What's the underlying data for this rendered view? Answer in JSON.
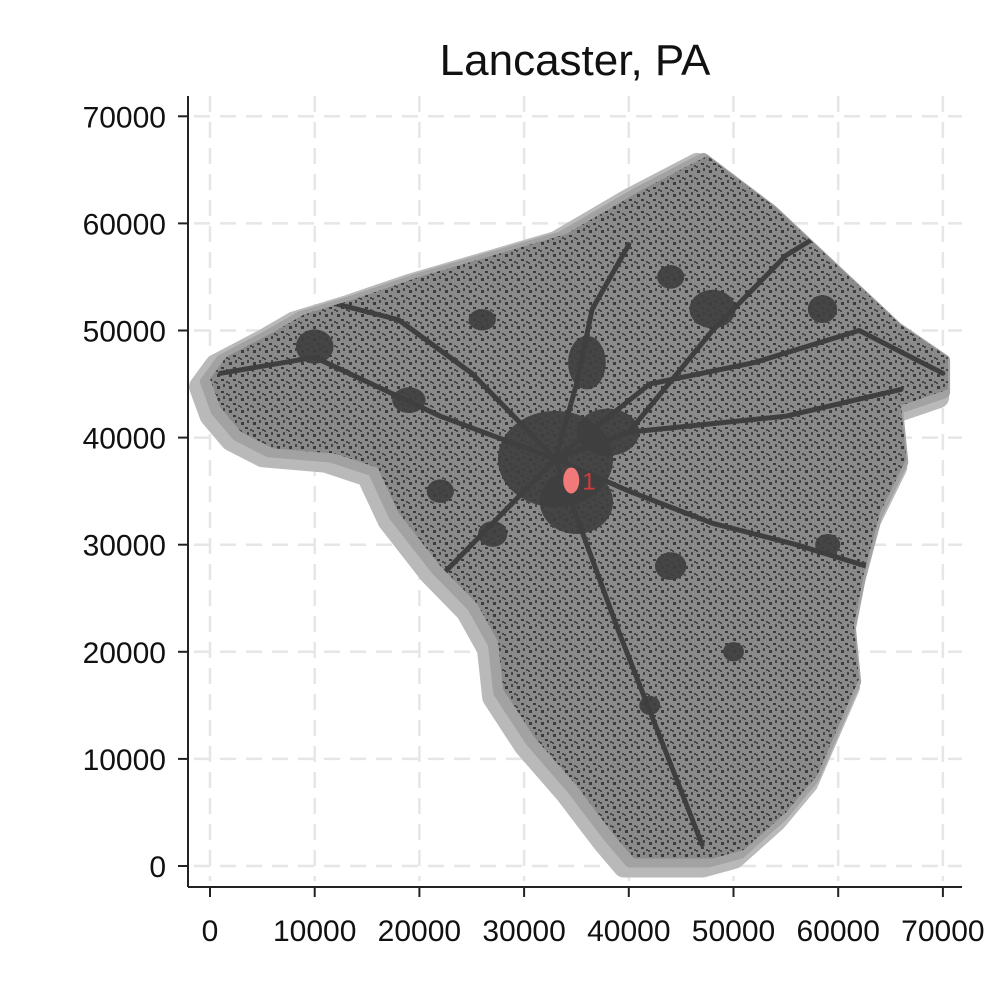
{
  "chart_data": {
    "type": "map",
    "title": "Lancaster, PA",
    "xlim": [
      0,
      72000
    ],
    "ylim": [
      0,
      70000
    ],
    "x_ticks": [
      "0",
      "10000",
      "20000",
      "30000",
      "40000",
      "50000",
      "60000",
      "70000"
    ],
    "y_ticks": [
      "0",
      "10000",
      "20000",
      "30000",
      "40000",
      "50000",
      "60000",
      "70000"
    ],
    "grid": true,
    "colors": {
      "outer_band": "#b9b9b9",
      "mid_band": "#a2a2a2",
      "county": "#8a8a8a",
      "urban": "#3f3f3f",
      "marker": "#f27979",
      "marker_label": "#d23c3c"
    },
    "markers": [
      {
        "label": "1",
        "x": 34500,
        "y": 36000
      }
    ],
    "boundary": [
      [
        0,
        45500
      ],
      [
        1500,
        47500
      ],
      [
        6000,
        49800
      ],
      [
        9000,
        51500
      ],
      [
        14000,
        53000
      ],
      [
        20000,
        55000
      ],
      [
        27000,
        57000
      ],
      [
        34000,
        59000
      ],
      [
        41000,
        63000
      ],
      [
        47500,
        66300
      ],
      [
        54000,
        61500
      ],
      [
        60000,
        56000
      ],
      [
        66000,
        50500
      ],
      [
        70500,
        47500
      ],
      [
        70500,
        44500
      ],
      [
        66000,
        43000
      ],
      [
        66500,
        38000
      ],
      [
        64000,
        33000
      ],
      [
        62500,
        27500
      ],
      [
        61500,
        22500
      ],
      [
        62000,
        17500
      ],
      [
        60000,
        13000
      ],
      [
        58000,
        8500
      ],
      [
        55000,
        5000
      ],
      [
        51000,
        1500
      ],
      [
        48000,
        700
      ],
      [
        40500,
        700
      ],
      [
        38500,
        3000
      ],
      [
        35000,
        7500
      ],
      [
        31000,
        12000
      ],
      [
        28000,
        16500
      ],
      [
        27500,
        21000
      ],
      [
        25500,
        24500
      ],
      [
        22000,
        28000
      ],
      [
        18000,
        33000
      ],
      [
        16000,
        37200
      ],
      [
        12000,
        38500
      ],
      [
        6000,
        39000
      ],
      [
        3000,
        40500
      ],
      [
        1000,
        42800
      ]
    ],
    "urban_areas": [
      {
        "x": 33000,
        "y": 38000,
        "rx": 5500,
        "ry": 4500
      },
      {
        "x": 35000,
        "y": 34000,
        "rx": 3500,
        "ry": 3000
      },
      {
        "x": 38000,
        "y": 40500,
        "rx": 3000,
        "ry": 2200
      },
      {
        "x": 36000,
        "y": 47000,
        "rx": 1800,
        "ry": 2500
      },
      {
        "x": 10000,
        "y": 48500,
        "rx": 1800,
        "ry": 1600
      },
      {
        "x": 19000,
        "y": 43500,
        "rx": 1600,
        "ry": 1200
      },
      {
        "x": 48000,
        "y": 52000,
        "rx": 2200,
        "ry": 1800
      },
      {
        "x": 58500,
        "y": 52000,
        "rx": 1400,
        "ry": 1300
      },
      {
        "x": 44000,
        "y": 28000,
        "rx": 1500,
        "ry": 1300
      },
      {
        "x": 59000,
        "y": 30000,
        "rx": 1200,
        "ry": 1000
      },
      {
        "x": 50000,
        "y": 20000,
        "rx": 1000,
        "ry": 900
      },
      {
        "x": 22000,
        "y": 35000,
        "rx": 1300,
        "ry": 1100
      },
      {
        "x": 27000,
        "y": 31000,
        "rx": 1400,
        "ry": 1200
      },
      {
        "x": 44000,
        "y": 55000,
        "rx": 1300,
        "ry": 1100
      },
      {
        "x": 26000,
        "y": 51000,
        "rx": 1300,
        "ry": 1000
      },
      {
        "x": 42000,
        "y": 15000,
        "rx": 1000,
        "ry": 900
      }
    ],
    "roads": [
      [
        [
          1000,
          46000
        ],
        [
          10000,
          47500
        ],
        [
          22000,
          42000
        ],
        [
          33000,
          38000
        ],
        [
          40000,
          40500
        ],
        [
          55000,
          42000
        ],
        [
          66000,
          44500
        ]
      ],
      [
        [
          33000,
          38000
        ],
        [
          40000,
          35000
        ],
        [
          48000,
          32000
        ],
        [
          56000,
          30000
        ],
        [
          66000,
          27000
        ]
      ],
      [
        [
          33000,
          38000
        ],
        [
          35000,
          45000
        ],
        [
          36500,
          52000
        ],
        [
          40000,
          58000
        ]
      ],
      [
        [
          33000,
          38000
        ],
        [
          25000,
          46000
        ],
        [
          18000,
          51000
        ],
        [
          10000,
          53000
        ]
      ],
      [
        [
          33000,
          38000
        ],
        [
          36000,
          30000
        ],
        [
          39000,
          22000
        ],
        [
          43000,
          12000
        ],
        [
          47000,
          2000
        ]
      ],
      [
        [
          33000,
          38000
        ],
        [
          27000,
          32000
        ],
        [
          22000,
          27000
        ]
      ],
      [
        [
          40000,
          40500
        ],
        [
          48000,
          50000
        ],
        [
          55000,
          57000
        ],
        [
          60000,
          60000
        ]
      ],
      [
        [
          33000,
          38000
        ],
        [
          42000,
          45000
        ],
        [
          52000,
          47000
        ],
        [
          62000,
          50000
        ],
        [
          70000,
          46000
        ]
      ]
    ]
  }
}
